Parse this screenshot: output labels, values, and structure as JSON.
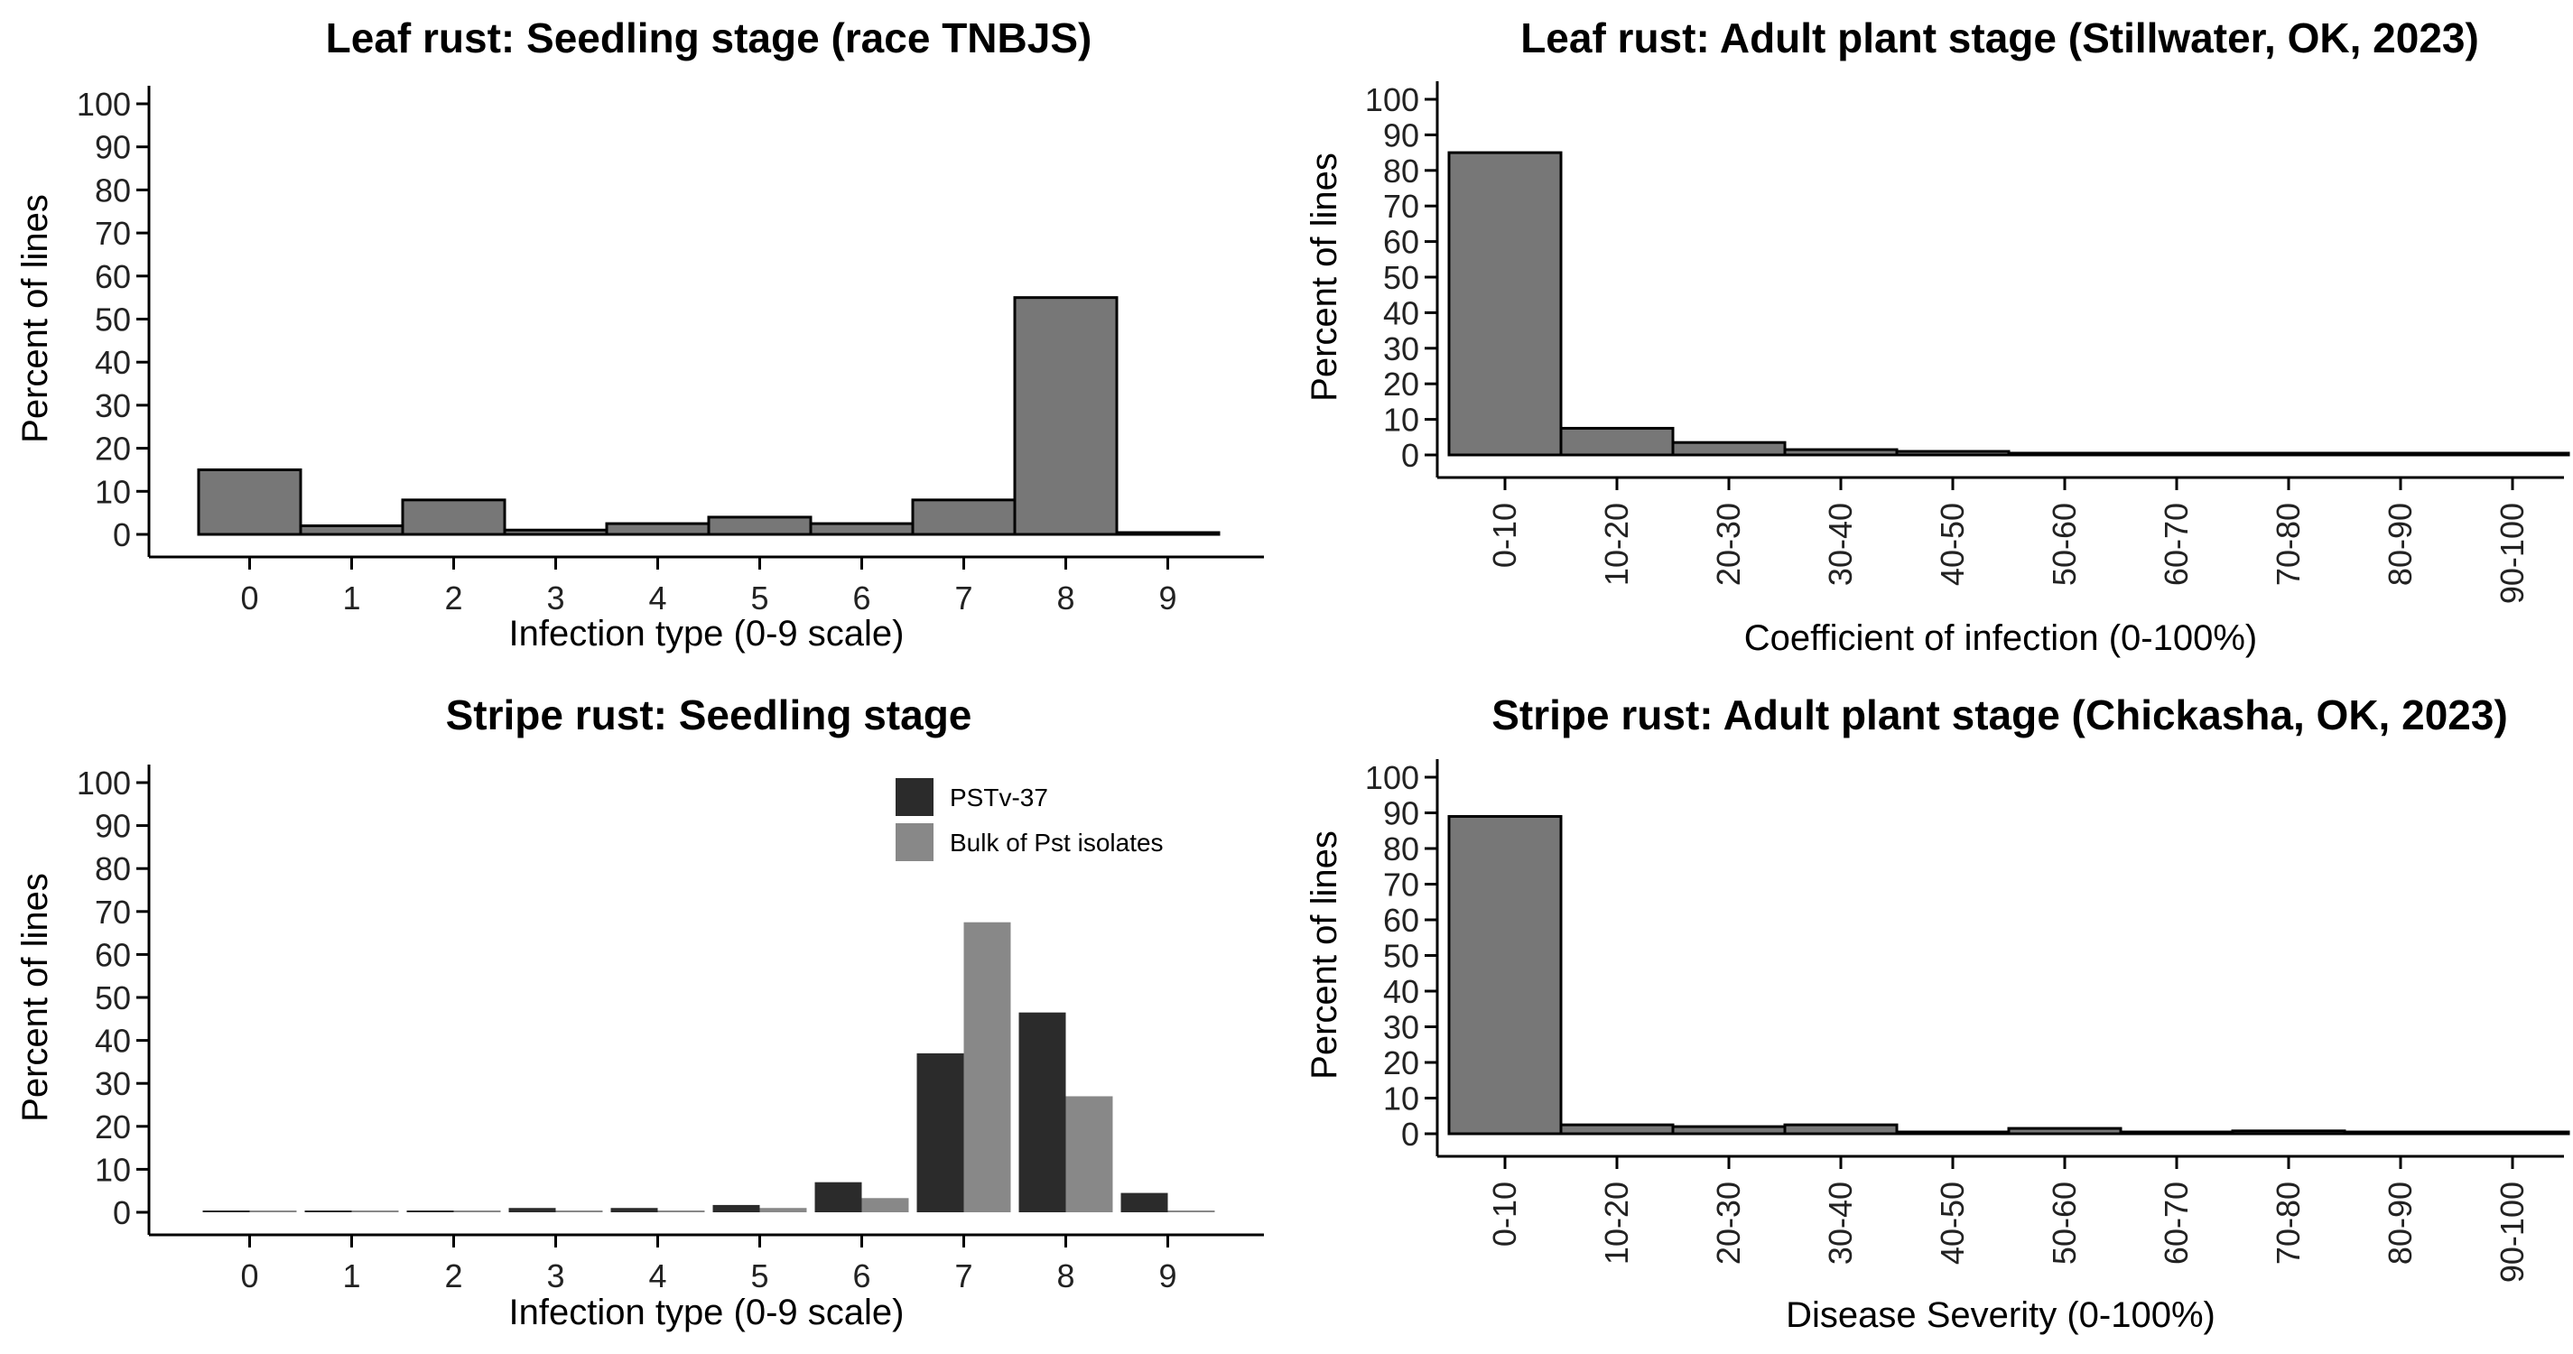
{
  "chart_data": [
    {
      "type": "bar",
      "title": "Leaf rust: Seedling stage (race TNBJS)",
      "xlabel": "Infection type (0-9 scale)",
      "ylabel": "Percent of lines",
      "categories": [
        "0",
        "1",
        "2",
        "3",
        "4",
        "5",
        "6",
        "7",
        "8",
        "9"
      ],
      "series": [
        {
          "color": "#777777",
          "values": [
            15,
            2,
            8,
            1,
            2.5,
            4,
            2.5,
            8,
            55,
            0
          ]
        }
      ],
      "yticks": [
        0,
        10,
        20,
        30,
        40,
        50,
        60,
        70,
        80,
        90,
        100
      ],
      "ylim": [
        0,
        100
      ],
      "legend": "none",
      "grid": false
    },
    {
      "type": "bar",
      "title": "Leaf rust: Adult plant stage (Stillwater, OK, 2023)",
      "xlabel": "Coefficient of infection (0-100%)",
      "ylabel": "Percent of lines",
      "categories": [
        "0-10",
        "10-20",
        "20-30",
        "30-40",
        "40-50",
        "50-60",
        "60-70",
        "70-80",
        "80-90",
        "90-100"
      ],
      "series": [
        {
          "color": "#777777",
          "values": [
            85,
            7.5,
            3.5,
            1.5,
            1,
            0.5,
            0,
            0,
            0,
            0
          ]
        }
      ],
      "yticks": [
        0,
        10,
        20,
        30,
        40,
        50,
        60,
        70,
        80,
        90,
        100
      ],
      "ylim": [
        0,
        100
      ],
      "legend": "none",
      "grid": false
    },
    {
      "type": "bar",
      "title": "Stripe rust: Seedling stage",
      "xlabel": "Infection type (0-9 scale)",
      "ylabel": "Percent of lines",
      "categories": [
        "0",
        "1",
        "2",
        "3",
        "4",
        "5",
        "6",
        "7",
        "8",
        "9"
      ],
      "series": [
        {
          "name": "PSTv-37",
          "color": "#2b2b2b",
          "values": [
            0,
            0.3,
            0.2,
            1,
            1,
            1.7,
            7,
            37,
            46.5,
            4.5
          ]
        },
        {
          "name": "Bulk of Pst isolates",
          "color": "#888888",
          "values": [
            0,
            0,
            0,
            0.3,
            0.3,
            1,
            3.3,
            67.5,
            27,
            0.3
          ]
        }
      ],
      "yticks": [
        0,
        10,
        20,
        30,
        40,
        50,
        60,
        70,
        80,
        90,
        100
      ],
      "ylim": [
        0,
        100
      ],
      "legend": "top-right",
      "grid": false
    },
    {
      "type": "bar",
      "title": "Stripe rust: Adult plant stage (Chickasha, OK, 2023)",
      "xlabel": "Disease Severity (0-100%)",
      "ylabel": "Percent of lines",
      "categories": [
        "0-10",
        "10-20",
        "20-30",
        "30-40",
        "40-50",
        "50-60",
        "60-70",
        "70-80",
        "80-90",
        "90-100"
      ],
      "series": [
        {
          "color": "#777777",
          "values": [
            89,
            2.5,
            2,
            2.5,
            0.5,
            1.5,
            0.3,
            0.8,
            0.2,
            0
          ]
        }
      ],
      "yticks": [
        0,
        10,
        20,
        30,
        40,
        50,
        60,
        70,
        80,
        90,
        100
      ],
      "ylim": [
        0,
        100
      ],
      "legend": "none",
      "grid": false
    }
  ]
}
